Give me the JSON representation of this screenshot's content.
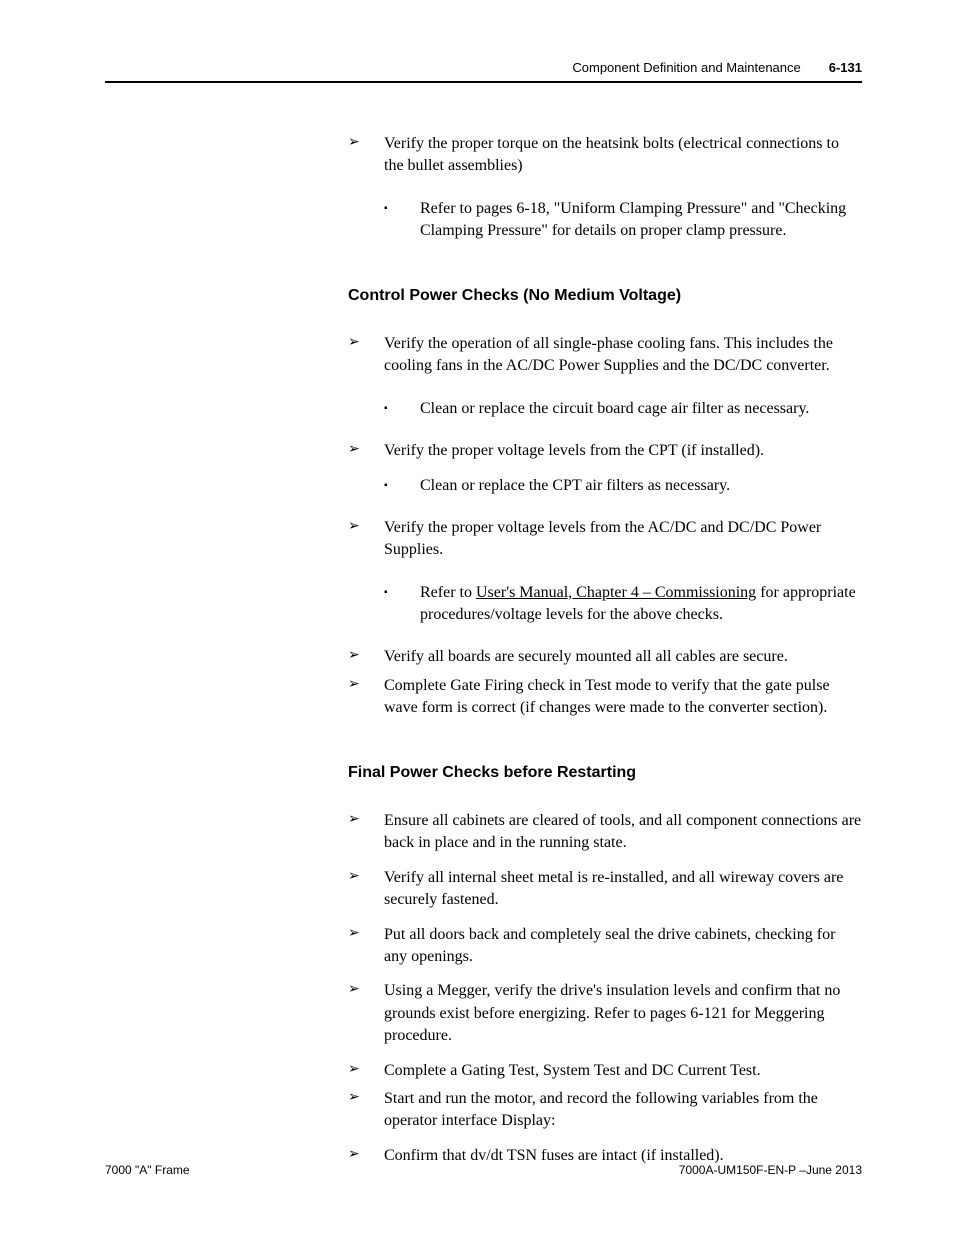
{
  "header": {
    "title": "Component Definition and Maintenance",
    "pageNumber": "6-131"
  },
  "sections": {
    "pre": {
      "item1": "Verify the proper torque on the heatsink bolts (electrical connections to the bullet assemblies)",
      "sub1": "Refer to pages 6-18, \"Uniform Clamping Pressure\" and \"Checking Clamping Pressure\" for details on proper clamp pressure."
    },
    "control": {
      "heading": "Control Power Checks (No Medium Voltage)",
      "item1": "Verify the operation of all single-phase cooling fans. This includes the cooling fans in the AC/DC Power Supplies and the DC/DC converter.",
      "sub1": "Clean or replace the circuit board cage air filter as necessary.",
      "item2": "Verify the proper voltage levels from the CPT (if installed).",
      "sub2": "Clean or replace the CPT air filters as necessary.",
      "item3": "Verify the proper voltage levels from the AC/DC and DC/DC Power Supplies.",
      "sub3_prefix": "Refer to ",
      "sub3_link": "User's Manual, Chapter 4 – Commissioning",
      "sub3_suffix": " for appropriate procedures/voltage levels for the above checks.",
      "item4": "Verify all boards are securely mounted all all cables are secure.",
      "item5": "Complete Gate Firing check in Test mode to verify that the gate pulse wave form is correct (if changes were made to the converter section)."
    },
    "final": {
      "heading": "Final Power Checks before Restarting",
      "item1": "Ensure all cabinets are cleared of tools, and all component connections are back in place and in the running state.",
      "item2": "Verify all internal sheet metal is re-installed, and all wireway covers are securely fastened.",
      "item3": "Put all doors back and completely seal the drive cabinets, checking for any openings.",
      "item4": "Using a Megger, verify the drive's insulation levels and confirm that no grounds exist before energizing. Refer to pages 6-121 for Meggering procedure.",
      "item5": "Complete a Gating Test, System Test and DC Current Test.",
      "item6a": "Start and run the motor, and record the following variables from the operator interface Display:",
      "item7": "Confirm that dv/dt TSN fuses are intact (if installed)."
    }
  },
  "footer": {
    "left": "7000 \"A\" Frame",
    "right": "7000A-UM150F-EN-P –June 2013"
  },
  "glyphs": {
    "arrow": "➢",
    "square": "▪"
  }
}
